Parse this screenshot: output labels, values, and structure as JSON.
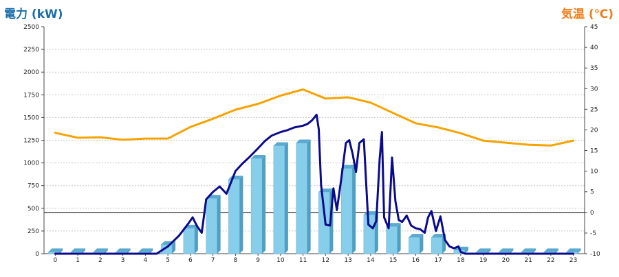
{
  "chart_data": {
    "type": "bar",
    "x_unit_labels": [
      "0",
      "1",
      "2",
      "3",
      "4",
      "5",
      "6",
      "7",
      "8",
      "9",
      "10",
      "11",
      "12",
      "13",
      "14",
      "15",
      "16",
      "17",
      "18",
      "19",
      "20",
      "21",
      "22",
      "23"
    ],
    "y_left_label": "電力 (kW)",
    "y_right_label": "気温 (℃)",
    "y_left_ticks": [
      "0",
      "250",
      "500",
      "750",
      "1000",
      "1250",
      "1500",
      "1750",
      "2000",
      "2250",
      "2500"
    ],
    "y_right_ticks": [
      "-10",
      "-5",
      "0",
      "5",
      "10",
      "15",
      "20",
      "25",
      "30",
      "35",
      "40",
      "45"
    ],
    "y_left_range": [
      0,
      2500
    ],
    "y_right_range": [
      -10,
      45
    ],
    "grid": true,
    "colors": {
      "bar": "#87ceeb",
      "bar_side": "#4f9fc4",
      "bar_top": "#5aa9cf",
      "power_line": "#0a0a8c",
      "temp_line": "#f5a300",
      "left_title": "#1b6ea8",
      "right_title": "#f07c18"
    },
    "series": [
      {
        "kind": "bar",
        "axis": "left",
        "x": [
          0,
          1,
          2,
          3,
          4,
          5,
          6,
          7,
          8,
          9,
          10,
          11,
          12,
          13,
          14,
          15,
          16,
          17,
          18,
          19,
          20,
          21,
          22,
          23
        ],
        "values": [
          20,
          20,
          20,
          20,
          20,
          100,
          280,
          610,
          820,
          1050,
          1190,
          1220,
          680,
          940,
          430,
          300,
          180,
          180,
          40,
          20,
          20,
          20,
          20,
          20
        ]
      },
      {
        "kind": "line",
        "axis": "left",
        "x": [
          0,
          4.5,
          5.0,
          5.5,
          5.9,
          6.1,
          6.3,
          6.5,
          6.7,
          7.0,
          7.3,
          7.6,
          8.0,
          8.3,
          8.6,
          9.0,
          9.3,
          9.6,
          10.0,
          10.3,
          10.6,
          11.0,
          11.2,
          11.4,
          11.6,
          11.7,
          11.8,
          12.0,
          12.2,
          12.35,
          12.5,
          12.7,
          12.9,
          13.05,
          13.2,
          13.35,
          13.5,
          13.7,
          13.9,
          14.1,
          14.25,
          14.4,
          14.5,
          14.6,
          14.8,
          14.95,
          15.1,
          15.25,
          15.4,
          15.6,
          15.8,
          16.0,
          16.2,
          16.4,
          16.55,
          16.7,
          16.9,
          17.1,
          17.3,
          17.5,
          17.7,
          17.9,
          18.0,
          18.2,
          23
        ],
        "y": [
          0,
          0,
          80,
          200,
          330,
          400,
          300,
          230,
          600,
          680,
          740,
          660,
          910,
          990,
          1060,
          1160,
          1240,
          1300,
          1340,
          1360,
          1390,
          1410,
          1430,
          1470,
          1530,
          1370,
          760,
          320,
          310,
          720,
          480,
          830,
          1220,
          1250,
          1100,
          900,
          1220,
          1260,
          320,
          280,
          360,
          1040,
          1340,
          400,
          280,
          1060,
          580,
          370,
          350,
          420,
          310,
          280,
          270,
          230,
          400,
          470,
          250,
          410,
          150,
          80,
          60,
          80,
          20,
          0,
          0
        ]
      },
      {
        "kind": "line",
        "axis": "right",
        "x": [
          0,
          0.5,
          1,
          2,
          3,
          4,
          5,
          6,
          7,
          8,
          9,
          10,
          11,
          12,
          13,
          14,
          15,
          16,
          17,
          18,
          19,
          20,
          21,
          22,
          23
        ],
        "y": [
          19.3,
          18.7,
          18.1,
          18.2,
          17.6,
          17.9,
          17.9,
          20.7,
          22.7,
          24.9,
          26.3,
          28.3,
          29.8,
          27.6,
          27.9,
          26.6,
          24.1,
          21.6,
          20.6,
          19.2,
          17.4,
          16.9,
          16.4,
          16.2,
          17.4
        ]
      }
    ]
  }
}
